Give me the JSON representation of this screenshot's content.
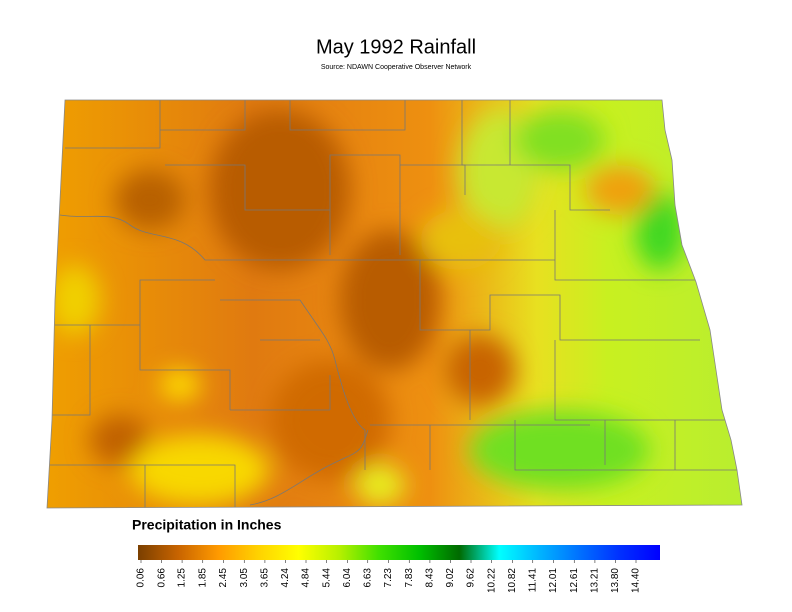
{
  "title": "May 1992 Rainfall",
  "subtitle": "Source: NDAWN Cooperative Observer Network",
  "legend": {
    "title": "Precipitation in Inches",
    "colors": [
      "#7a3f00",
      "#c86400",
      "#ff9a00",
      "#ffd200",
      "#ffff00",
      "#b8f000",
      "#40e000",
      "#00c000",
      "#006a00",
      "#00ffff",
      "#00b4ff",
      "#0070ff",
      "#0030ff",
      "#0000ff"
    ],
    "ticks": [
      0.06,
      0.66,
      1.25,
      1.85,
      2.45,
      3.05,
      3.65,
      4.24,
      4.84,
      5.44,
      6.04,
      6.63,
      7.23,
      7.83,
      8.43,
      9.02,
      9.62,
      10.22,
      10.82,
      11.41,
      12.01,
      12.61,
      13.21,
      {
        "value": 13.8,
        "label": "13.80"
      },
      {
        "value": 14.4,
        "label": "14.40"
      }
    ]
  }
}
